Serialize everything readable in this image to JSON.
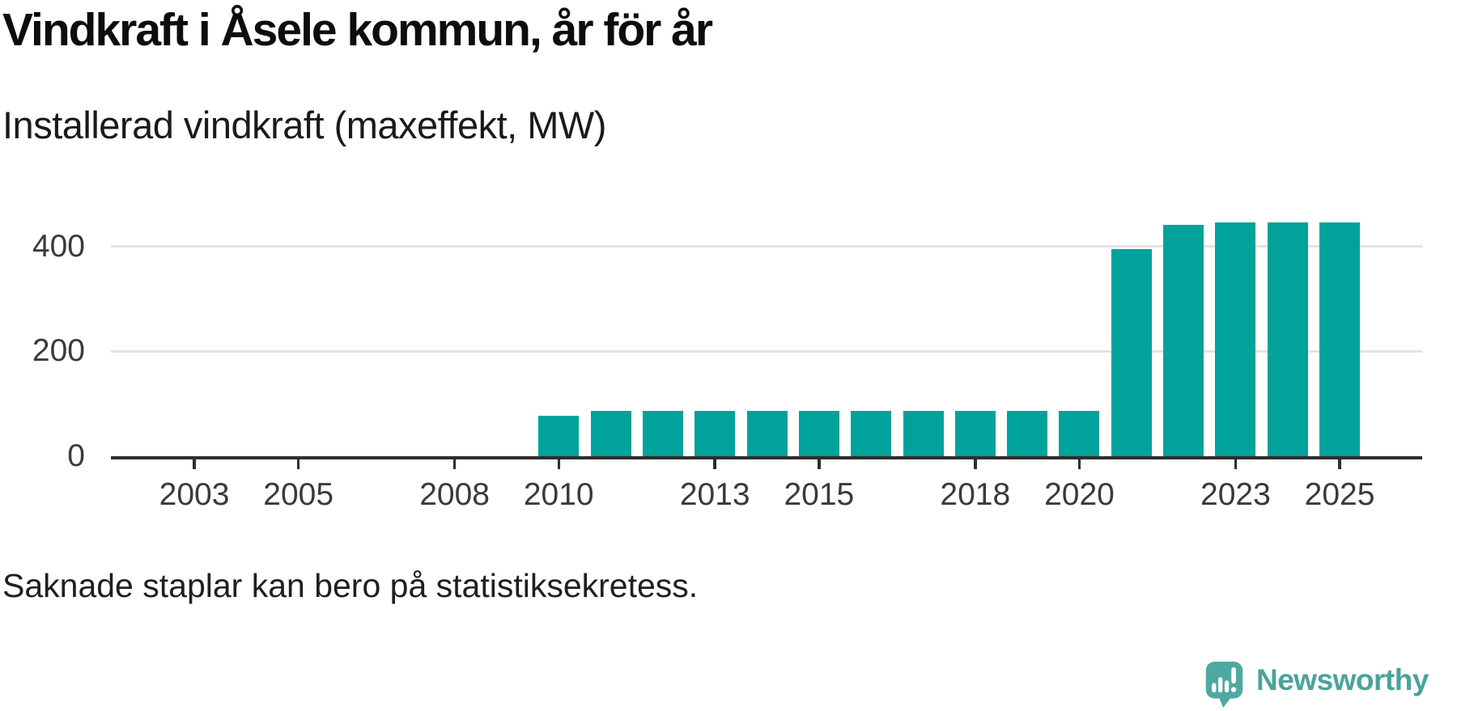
{
  "title": "Vindkraft i Åsele kommun, år för år",
  "subtitle": "Installerad vindkraft (maxeffekt, MW)",
  "footnote": "Saknade staplar kan bero på statistiksekretess.",
  "branding": {
    "name": "Newsworthy"
  },
  "colors": {
    "bar": "#00a29a",
    "axis": "#2e2e2e",
    "gridline": "#e3e3e3",
    "tick_text": "#3a3a3a",
    "brand_teal": "#4ba29c"
  },
  "chart_data": {
    "type": "bar",
    "title": "Vindkraft i Åsele kommun, år för år",
    "ylabel": "Installerad vindkraft (maxeffekt, MW)",
    "unit": "MW",
    "categories": [
      2002,
      2003,
      2004,
      2005,
      2006,
      2007,
      2008,
      2009,
      2010,
      2011,
      2012,
      2013,
      2014,
      2015,
      2016,
      2017,
      2018,
      2019,
      2020,
      2021,
      2022,
      2023,
      2024,
      2025
    ],
    "values": [
      null,
      null,
      null,
      null,
      null,
      null,
      null,
      null,
      77,
      86,
      86,
      86,
      86,
      86,
      86,
      86,
      86,
      86,
      86,
      394,
      441,
      445,
      445,
      445
    ],
    "missing_values_note": "Saknade staplar kan bero på statistiksekretess.",
    "xticks": [
      2003,
      2005,
      2008,
      2010,
      2013,
      2015,
      2018,
      2020,
      2023,
      2025
    ],
    "yticks": [
      0,
      200,
      400
    ],
    "ylim": [
      0,
      460
    ],
    "grid": "horizontal",
    "legend": "none",
    "bar_color": "#00a29a"
  }
}
